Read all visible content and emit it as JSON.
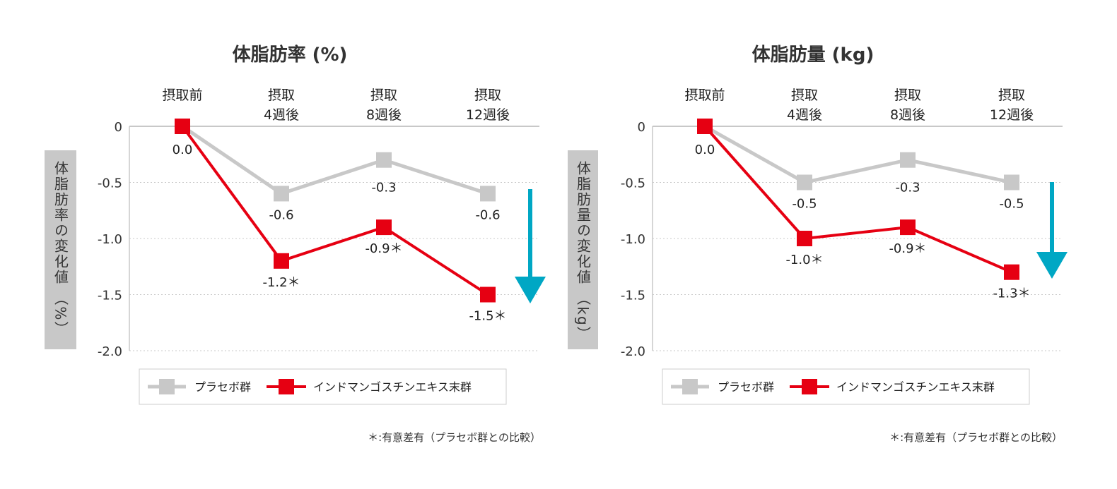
{
  "colors": {
    "placebo": "#c8c8c8",
    "treatment": "#e60012",
    "arrow": "#00a7c4",
    "axis_label_bg": "#c8c8c8",
    "grid": "#c8c8c8"
  },
  "chart_data": [
    {
      "type": "line",
      "title": "体脂肪率 (%)",
      "ylabel": "体脂肪率の変化値 （%）",
      "categories": [
        [
          "摂取前"
        ],
        [
          "摂取",
          "4週後"
        ],
        [
          "摂取",
          "8週後"
        ],
        [
          "摂取",
          "12週後"
        ]
      ],
      "ylim": [
        -2.0,
        0
      ],
      "yticks": [
        "0",
        "-0.5",
        "-1.0",
        "-1.5",
        "-2.0"
      ],
      "grid": true,
      "legend_position": "bottom",
      "series": [
        {
          "name": "プラセボ群",
          "values": [
            0.0,
            -0.6,
            -0.3,
            -0.6
          ],
          "labels": [
            "",
            "-0.6",
            "-0.3",
            "-0.6"
          ]
        },
        {
          "name": "インドマンゴスチンエキス末群",
          "values": [
            0.0,
            -1.2,
            -0.9,
            -1.5
          ],
          "labels": [
            "0.0",
            "-1.2＊",
            "-0.9＊",
            "-1.5＊"
          ]
        }
      ],
      "footnote": "＊:有意差有（プラセボ群との比較）",
      "annotation": "down-arrow"
    },
    {
      "type": "line",
      "title": "体脂肪量 (kg)",
      "ylabel": "体脂肪量の変化値 （kg）",
      "categories": [
        [
          "摂取前"
        ],
        [
          "摂取",
          "4週後"
        ],
        [
          "摂取",
          "8週後"
        ],
        [
          "摂取",
          "12週後"
        ]
      ],
      "ylim": [
        -2.0,
        0
      ],
      "yticks": [
        "0",
        "-0.5",
        "-1.0",
        "-1.5",
        "-2.0"
      ],
      "grid": true,
      "legend_position": "bottom",
      "series": [
        {
          "name": "プラセボ群",
          "values": [
            0.0,
            -0.5,
            -0.3,
            -0.5
          ],
          "labels": [
            "",
            "-0.5",
            "-0.3",
            "-0.5"
          ]
        },
        {
          "name": "インドマンゴスチンエキス末群",
          "values": [
            0.0,
            -1.0,
            -0.9,
            -1.3
          ],
          "labels": [
            "0.0",
            "-1.0＊",
            "-0.9＊",
            "-1.3＊"
          ]
        }
      ],
      "footnote": "＊:有意差有（プラセボ群との比較）",
      "annotation": "down-arrow"
    }
  ]
}
